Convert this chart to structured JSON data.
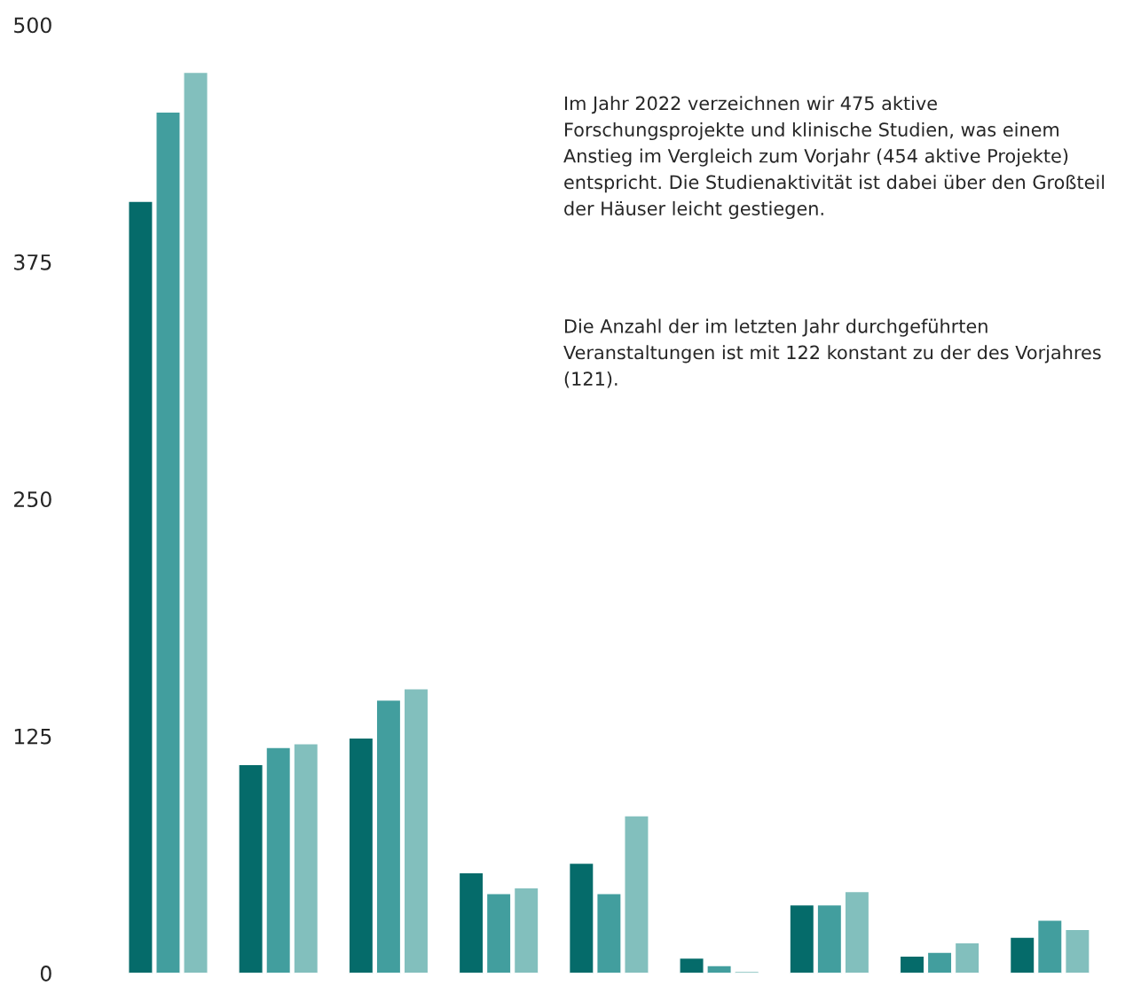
{
  "chart_data": {
    "type": "bar",
    "categories": [
      null,
      null,
      null,
      null,
      null,
      null,
      null,
      null,
      null
    ],
    "series": [
      {
        "color": "#056b6a",
        "values": [
          407,
          110,
          124,
          53,
          58,
          8,
          36,
          9,
          19
        ]
      },
      {
        "color": "#429e9e",
        "values": [
          454,
          119,
          144,
          42,
          42,
          4,
          36,
          11,
          28
        ]
      },
      {
        "color": "#82bfbd",
        "values": [
          475,
          121,
          150,
          45,
          83,
          1,
          43,
          16,
          23
        ]
      }
    ],
    "ylim": [
      0,
      500
    ],
    "yticks": [
      0,
      125,
      250,
      375,
      500
    ],
    "grid": false,
    "annotations": [
      "Im Jahr 2022 verzeichnen wir 475 aktive Forschungsprojekte und klinische Studien, was einem Anstieg im Vergleich zum Vorjahr (454 aktive Projekte) entspricht. Die Studienaktivität ist dabei über den Großteil der Häuser leicht gestiegen.",
      "Die Anzahl der im letzten Jahr durchgeführten Veranstaltungen ist mit 122 konstant zu der des Vorjahres (121)."
    ]
  }
}
